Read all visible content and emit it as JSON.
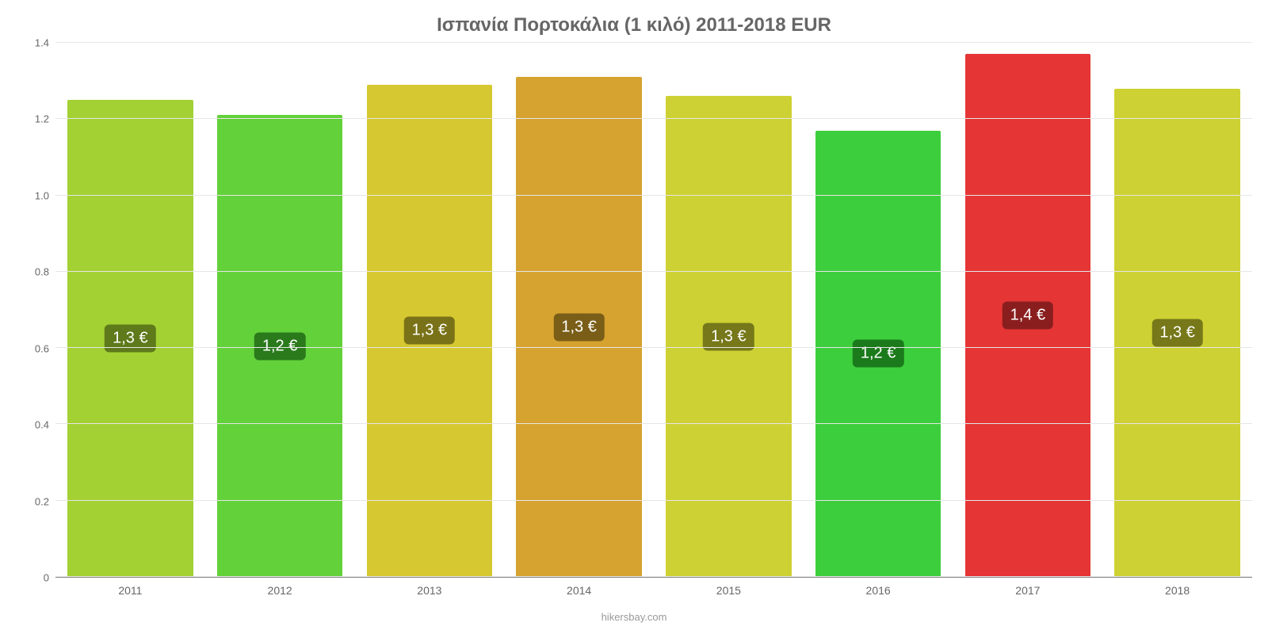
{
  "chart": {
    "type": "bar",
    "title": "Ισπανία Πορτοκάλια (1 κιλό) 2011-2018 EUR",
    "title_fontsize": 24,
    "title_color": "#666666",
    "background_color": "#ffffff",
    "grid_color": "#e6e6e6",
    "axis_color": "#666666",
    "ylim": [
      0,
      1.4
    ],
    "yticks": [
      0,
      0.2,
      0.4,
      0.6,
      0.8,
      1.0,
      1.2,
      1.4
    ],
    "ytick_labels": [
      "0",
      "0.2",
      "0.4",
      "0.6",
      "0.8",
      "1.0",
      "1.2",
      "1.4"
    ],
    "ytick_fontsize": 13,
    "xtick_fontsize": 14,
    "categories": [
      "2011",
      "2012",
      "2013",
      "2014",
      "2015",
      "2016",
      "2017",
      "2018"
    ],
    "values": [
      1.25,
      1.21,
      1.29,
      1.31,
      1.26,
      1.17,
      1.37,
      1.28
    ],
    "value_labels": [
      "1,3 €",
      "1,2 €",
      "1,3 €",
      "1,3 €",
      "1,3 €",
      "1,2 €",
      "1,4 €",
      "1,3 €"
    ],
    "bar_colors": [
      "#a3d133",
      "#63d13a",
      "#d6c830",
      "#d6a330",
      "#ced133",
      "#3dce3d",
      "#e63535",
      "#ced133"
    ],
    "label_bg_colors": [
      "#5e7a1a",
      "#2a7a1c",
      "#7a7218",
      "#7a5e18",
      "#76781a",
      "#1b7a1b",
      "#8a1e1e",
      "#76781a"
    ],
    "label_fontsize": 20,
    "bar_width_pct": 84
  },
  "source": {
    "text": "hikersbay.com",
    "fontsize": 13,
    "color": "#999999"
  }
}
